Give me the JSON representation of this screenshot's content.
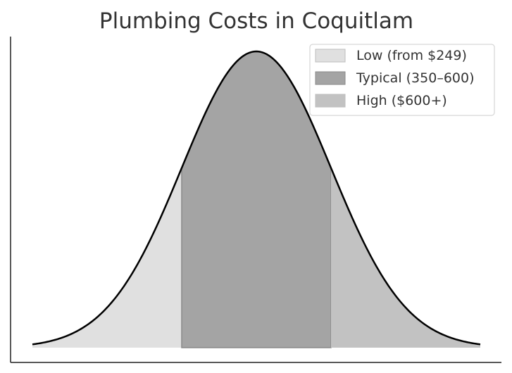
{
  "chart_data": {
    "type": "area",
    "title": "Plumbing Costs in Coquitlam",
    "xlabel": "",
    "ylabel": "",
    "xlim": [
      -3,
      3
    ],
    "ylim": [
      0,
      1.05
    ],
    "curve": {
      "kind": "normal",
      "mean": 0,
      "sd": 1,
      "x_range": [
        -3,
        3
      ],
      "color": "#000000"
    },
    "series": [
      {
        "name": "Low (from $249)",
        "x_range": [
          -3,
          -1
        ],
        "color": "#e0e0e0"
      },
      {
        "name": "Typical (350–600)",
        "x_range": [
          -1,
          1
        ],
        "color": "#a4a4a4"
      },
      {
        "name": "High ($600+)",
        "x_range": [
          1,
          3
        ],
        "color": "#c2c2c2"
      }
    ],
    "grid": false,
    "legend_position": "top-right"
  }
}
